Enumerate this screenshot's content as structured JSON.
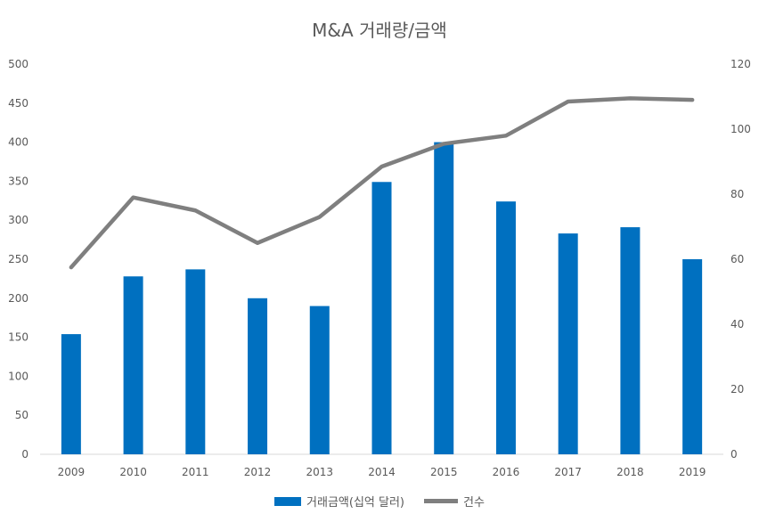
{
  "chart_data": {
    "type": "bar",
    "title": "M&A 거래량/금액",
    "categories": [
      "2009",
      "2010",
      "2011",
      "2012",
      "2013",
      "2014",
      "2015",
      "2016",
      "2017",
      "2018",
      "2019"
    ],
    "series": [
      {
        "name": "거래금액(십억 달러)",
        "kind": "bar",
        "axis": "left",
        "color": "#0070C0",
        "values": [
          154,
          228,
          237,
          200,
          190,
          349,
          400,
          324,
          283,
          291,
          250
        ]
      },
      {
        "name": "건수",
        "kind": "line",
        "axis": "right",
        "color": "#7F7F7F",
        "values": [
          57.5,
          79,
          75,
          65,
          73,
          88.5,
          95.5,
          98,
          108.5,
          109.5,
          109
        ]
      }
    ],
    "y_left": {
      "min": 0,
      "max": 500,
      "step": 50,
      "ticks": [
        "0",
        "50",
        "100",
        "150",
        "200",
        "250",
        "300",
        "350",
        "400",
        "450",
        "500"
      ]
    },
    "y_right": {
      "min": 0,
      "max": 120,
      "step": 20,
      "ticks": [
        "0",
        "20",
        "40",
        "60",
        "80",
        "100",
        "120"
      ]
    },
    "legend_position": "bottom",
    "grid": false
  }
}
